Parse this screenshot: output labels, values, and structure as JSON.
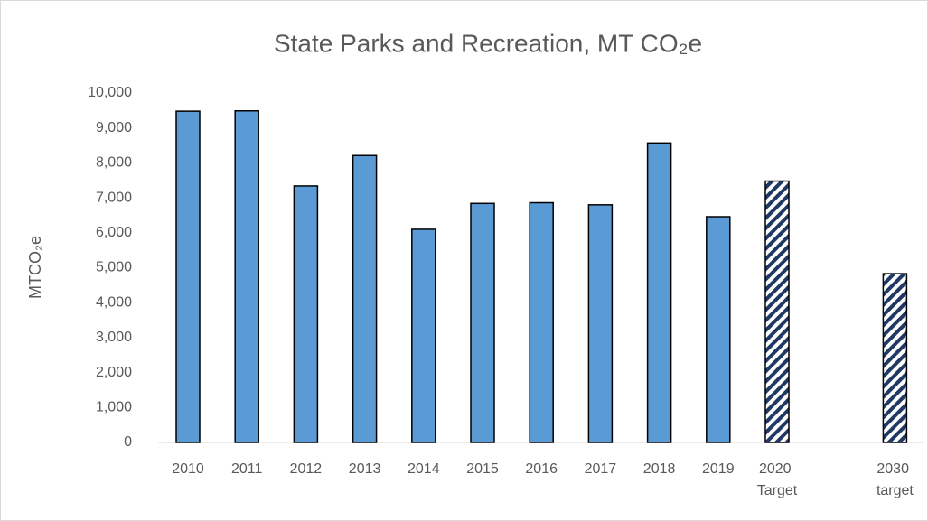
{
  "chart_data": {
    "type": "bar",
    "title": "State Parks and Recreation, MT CO₂e",
    "y_label": "MTCO₂e",
    "categories": [
      "2010",
      "2011",
      "2012",
      "2013",
      "2014",
      "2015",
      "2016",
      "2017",
      "2018",
      "2019",
      "2020 Target",
      null,
      "2030 target"
    ],
    "values": [
      9480,
      9490,
      7340,
      8210,
      6100,
      6840,
      6860,
      6800,
      8570,
      6460,
      7480,
      null,
      4830
    ],
    "hatched": [
      false,
      false,
      false,
      false,
      false,
      false,
      false,
      false,
      false,
      false,
      true,
      null,
      true
    ],
    "color": "#5b9bd5",
    "hatch_color": "#1f3864",
    "ylim": [
      0,
      10000
    ],
    "yticks": [
      0,
      {
        "value": 1000,
        "label": "1,000"
      },
      {
        "value": 2000,
        "label": "2,000"
      },
      {
        "value": 3000,
        "label": "3,000"
      },
      {
        "value": 4000,
        "label": "4,000"
      },
      {
        "value": 5000,
        "label": "5,000"
      },
      {
        "value": 6000,
        "label": "6,000"
      },
      {
        "value": 7000,
        "label": "7,000"
      },
      {
        "value": 8000,
        "label": "8,000"
      },
      {
        "value": 9000,
        "label": "9,000"
      },
      {
        "value": 10000,
        "label": "10,000"
      }
    ],
    "grid": false
  }
}
